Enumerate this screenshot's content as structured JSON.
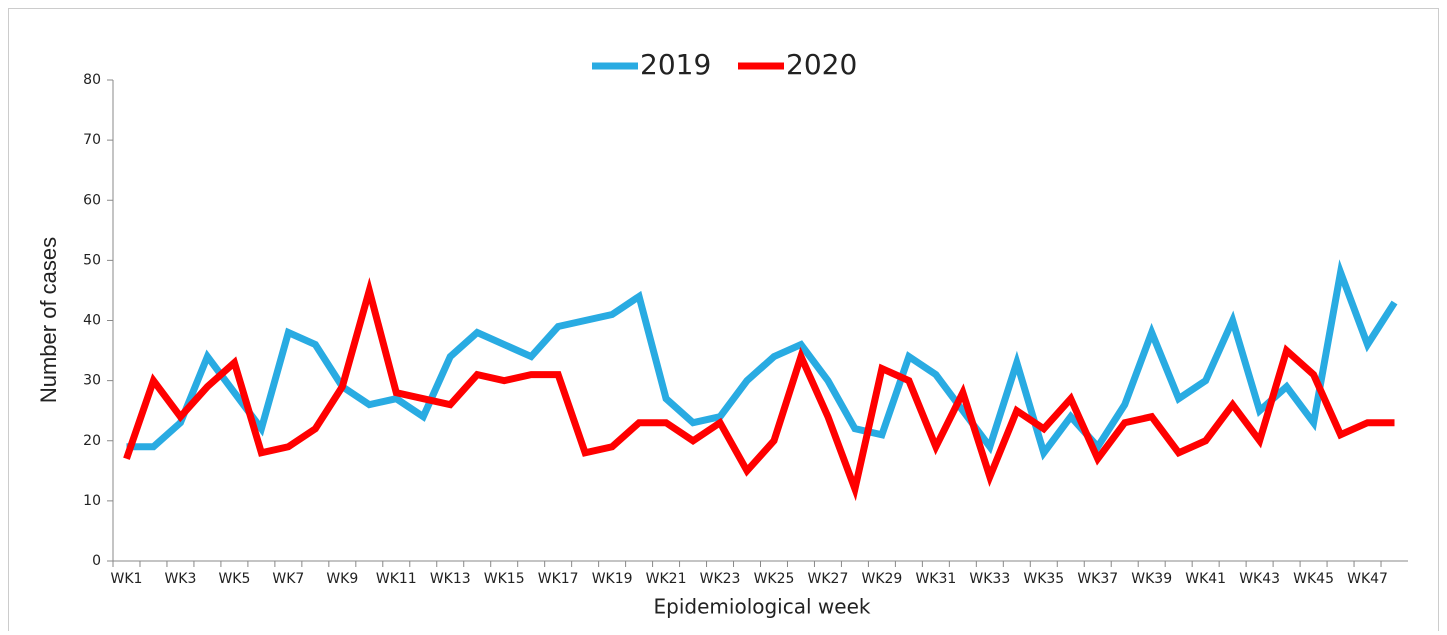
{
  "chart_data": {
    "type": "line",
    "xlabel": "Epidemiological week",
    "ylabel": "Number of cases",
    "categories": [
      "WK1",
      null,
      "WK3",
      null,
      "WK5",
      null,
      "WK7",
      null,
      "WK9",
      null,
      "WK11",
      null,
      "WK13",
      null,
      "WK15",
      null,
      "WK17",
      null,
      "WK19",
      null,
      "WK21",
      null,
      "WK23",
      null,
      "WK25",
      null,
      "WK27",
      null,
      "WK29",
      null,
      "WK31",
      null,
      "WK33",
      null,
      "WK35",
      null,
      "WK37",
      null,
      "WK39",
      null,
      "WK41",
      null,
      "WK43",
      null,
      "WK45",
      null,
      "WK47",
      null
    ],
    "series": [
      {
        "name": "2019",
        "color": "#29abe2",
        "values": [
          19,
          19,
          23,
          34,
          28,
          22,
          38,
          36,
          29,
          26,
          27,
          24,
          34,
          38,
          36,
          34,
          39,
          40,
          41,
          44,
          27,
          23,
          24,
          30,
          34,
          36,
          30,
          22,
          21,
          34,
          31,
          25,
          19,
          33,
          18,
          24,
          19,
          26,
          38,
          27,
          30,
          40,
          25,
          29,
          23,
          48,
          36,
          43
        ]
      },
      {
        "name": "2020",
        "color": "#ff0000",
        "values": [
          17,
          30,
          24,
          29,
          33,
          18,
          19,
          22,
          29,
          45,
          28,
          27,
          26,
          31,
          30,
          31,
          31,
          18,
          19,
          23,
          23,
          20,
          23,
          15,
          20,
          34,
          24,
          12,
          32,
          30,
          19,
          28,
          14,
          25,
          22,
          27,
          17,
          23,
          24,
          18,
          20,
          26,
          20,
          35,
          31,
          21,
          23,
          23
        ]
      }
    ],
    "ylim": [
      0,
      80
    ],
    "yticks": [
      0,
      10,
      20,
      30,
      40,
      50,
      60,
      70,
      80
    ],
    "legend": "top",
    "grid": false
  }
}
